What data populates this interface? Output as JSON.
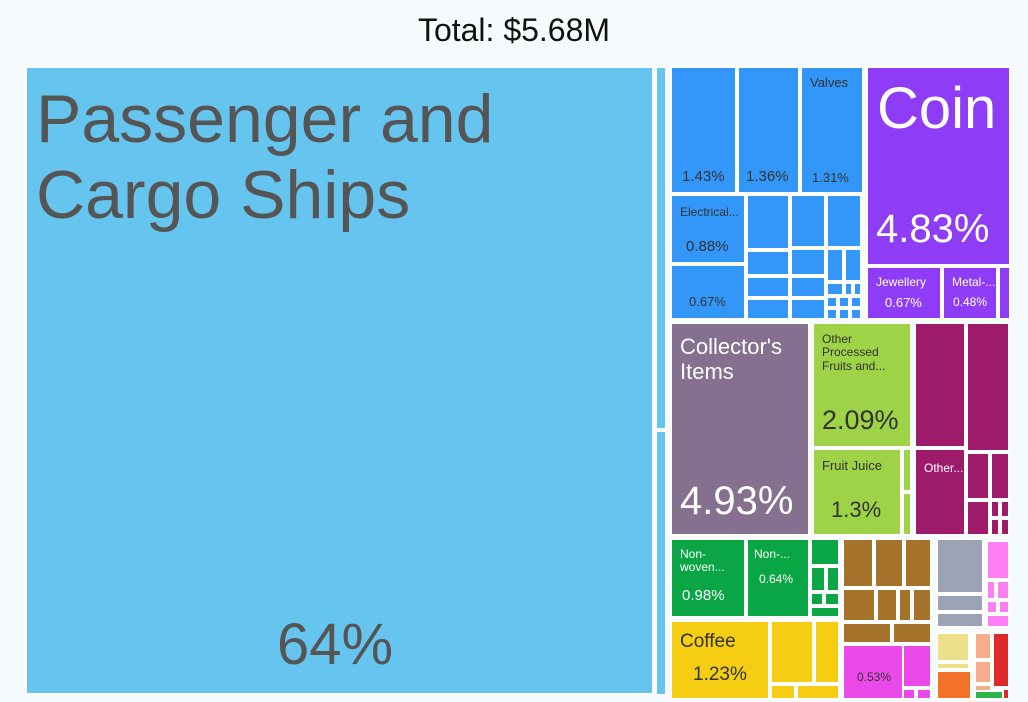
{
  "title": "Total: $5.68M",
  "chart_data": {
    "type": "treemap",
    "title": "Total: $5.68M",
    "categories": [
      {
        "name": "Passenger and Cargo Ships",
        "share": "64%",
        "color": "#66c5ef"
      },
      {
        "name": "",
        "share": "1.43%",
        "color": "#3297f8"
      },
      {
        "name": "",
        "share": "1.36%",
        "color": "#3297f8"
      },
      {
        "name": "Valves",
        "share": "1.31%",
        "color": "#3297f8"
      },
      {
        "name": "Electrical...",
        "share": "0.88%",
        "color": "#3297f8"
      },
      {
        "name": "",
        "share": "0.67%",
        "color": "#3297f8"
      },
      {
        "name": "Coin",
        "share": "4.83%",
        "color": "#8f3cf6"
      },
      {
        "name": "Jewellery",
        "share": "0.67%",
        "color": "#8f3cf6"
      },
      {
        "name": "Metal-...",
        "share": "0.48%",
        "color": "#8f3cf6"
      },
      {
        "name": "Collector's Items",
        "share": "4.93%",
        "color": "#85708f"
      },
      {
        "name": "Other Processed Fruits and...",
        "share": "2.09%",
        "color": "#9ed247"
      },
      {
        "name": "Fruit Juice",
        "share": "1.3%",
        "color": "#9ed247"
      },
      {
        "name": "Other...",
        "share": "",
        "color": "#9e1a6a"
      },
      {
        "name": "Non-woven...",
        "share": "0.98%",
        "color": "#0aa545"
      },
      {
        "name": "Non-...",
        "share": "0.64%",
        "color": "#0aa545"
      },
      {
        "name": "Coffee",
        "share": "1.23%",
        "color": "#f5ce13"
      },
      {
        "name": "",
        "share": "0.53%",
        "color": "#ec4ae8"
      }
    ]
  }
}
